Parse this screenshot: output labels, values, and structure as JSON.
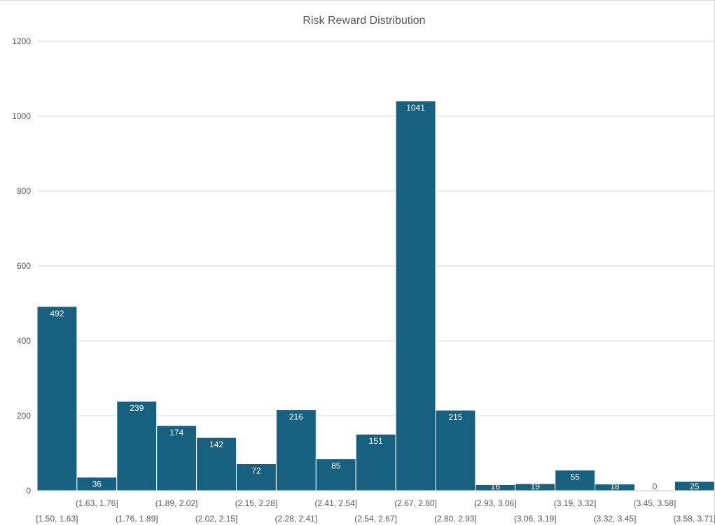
{
  "chart_data": {
    "type": "bar",
    "title": "Risk Reward Distribution",
    "xlabel": "",
    "ylabel": "",
    "ylim": [
      0,
      1200
    ],
    "yticks": [
      0,
      200,
      400,
      600,
      800,
      1000,
      1200
    ],
    "grid": true,
    "legend": "none",
    "bar_color": "#17607f",
    "categories": [
      "[1.50, 1.63]",
      "(1.63, 1.76]",
      "(1.76, 1.89]",
      "(1.89, 2.02]",
      "(2.02, 2.15]",
      "(2.15, 2.28]",
      "(2.28, 2.41]",
      "(2.41, 2.54]",
      "(2.54, 2.67]",
      "(2.67, 2.80]",
      "(2.80, 2.93]",
      "(2.93, 3.06]",
      "(3.06, 3.19]",
      "(3.19, 3.32]",
      "(3.32, 3.45]",
      "(3.45, 3.58]",
      "(3.58, 3.71]"
    ],
    "values": [
      492,
      36,
      239,
      174,
      142,
      72,
      216,
      85,
      151,
      1041,
      215,
      16,
      19,
      55,
      18,
      0,
      25
    ]
  }
}
